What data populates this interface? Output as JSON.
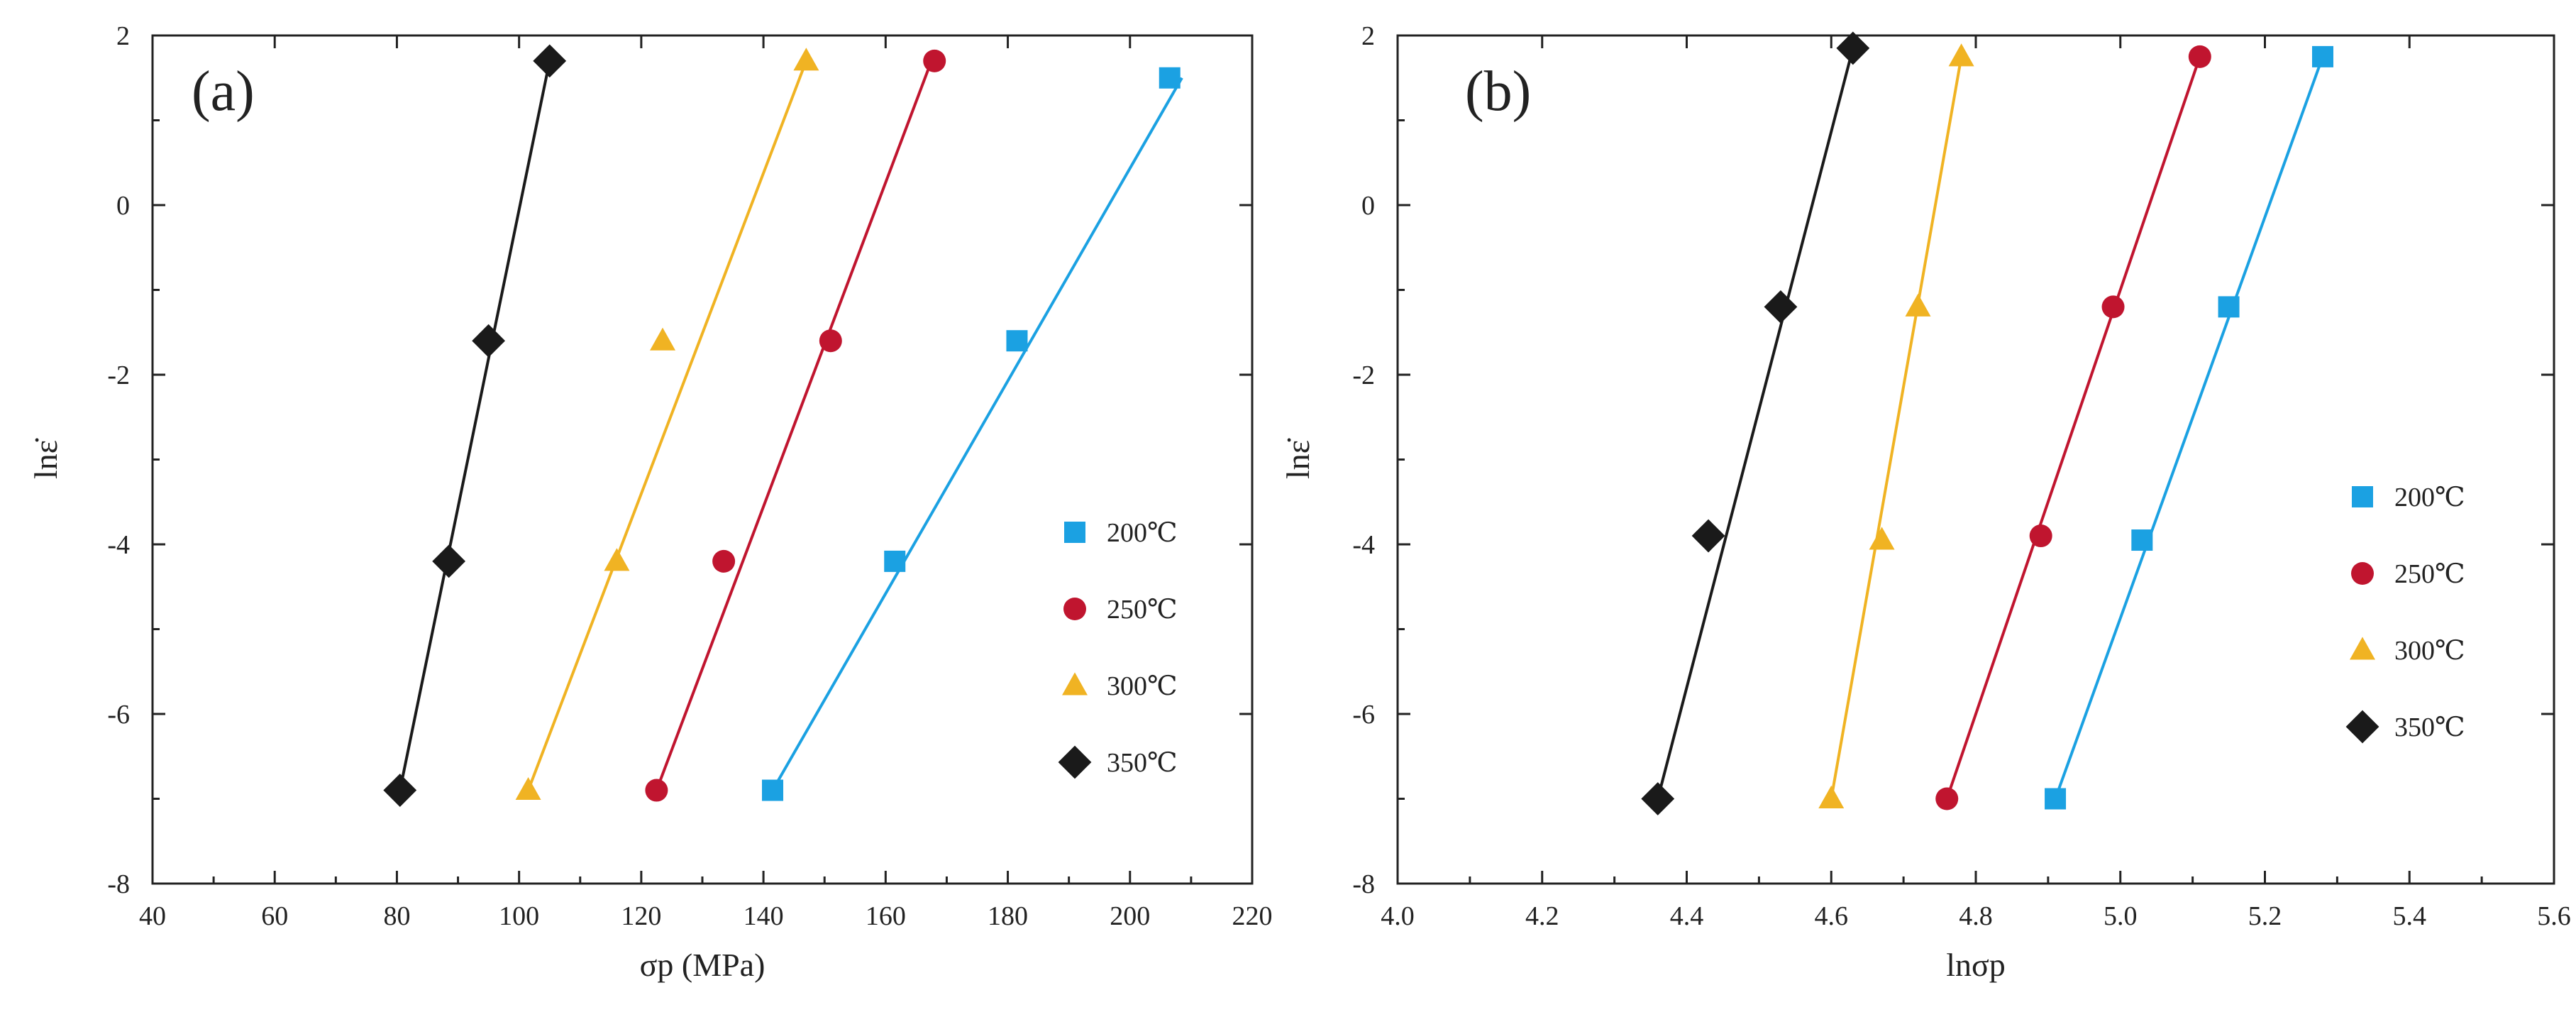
{
  "chart_data": [
    {
      "type": "scatter",
      "panel_label": "(a)",
      "xlabel": "σp (MPa)",
      "ylabel": "lnε̇",
      "xlim": [
        40,
        220
      ],
      "ylim": [
        -8,
        2
      ],
      "xticks": [
        40,
        60,
        80,
        100,
        120,
        140,
        160,
        180,
        200,
        220
      ],
      "yticks": [
        -8,
        -6,
        -4,
        -2,
        0,
        2
      ],
      "xtick_labels": [
        "40",
        "60",
        "80",
        "100",
        "120",
        "140",
        "160",
        "180",
        "200",
        "220"
      ],
      "ytick_labels": [
        "-8",
        "-6",
        "-4",
        "-2",
        "0",
        "2"
      ],
      "legend_position": "right",
      "series": [
        {
          "name": "200℃",
          "marker": "square",
          "color": "#1ba1e2",
          "x": [
            141.5,
            161.5,
            181.5,
            206.5
          ],
          "y": [
            -6.9,
            -4.2,
            -1.6,
            1.5
          ],
          "fit": {
            "x": [
              141.5,
              208.5
            ],
            "y": [
              -6.9,
              1.5
            ]
          }
        },
        {
          "name": "250℃",
          "marker": "circle",
          "color": "#c0152f",
          "x": [
            122.5,
            133.5,
            151.0,
            168.0
          ],
          "y": [
            -6.9,
            -4.2,
            -1.6,
            1.7
          ],
          "fit": {
            "x": [
              122.5,
              167.5
            ],
            "y": [
              -6.9,
              1.7
            ]
          }
        },
        {
          "name": "300℃",
          "marker": "triangle",
          "color": "#f0b323",
          "x": [
            101.5,
            116.0,
            123.5,
            147.0
          ],
          "y": [
            -6.9,
            -4.2,
            -1.6,
            1.7
          ],
          "fit": {
            "x": [
              101.5,
              147.0
            ],
            "y": [
              -6.9,
              1.7
            ]
          }
        },
        {
          "name": "350℃",
          "marker": "diamond",
          "color": "#1a1a1a",
          "x": [
            80.5,
            88.5,
            95.0,
            105.0
          ],
          "y": [
            -6.9,
            -4.2,
            -1.6,
            1.7
          ],
          "fit": {
            "x": [
              80.5,
              105.0
            ],
            "y": [
              -6.9,
              1.7
            ]
          }
        }
      ]
    },
    {
      "type": "scatter",
      "panel_label": "(b)",
      "xlabel": "lnσp",
      "ylabel": "lnε̇",
      "xlim": [
        4.0,
        5.6
      ],
      "ylim": [
        -8,
        2
      ],
      "xticks": [
        4.0,
        4.2,
        4.4,
        4.6,
        4.8,
        5.0,
        5.2,
        5.4,
        5.6
      ],
      "yticks": [
        -8,
        -6,
        -4,
        -2,
        0,
        2
      ],
      "xtick_labels": [
        "4.0",
        "4.2",
        "4.4",
        "4.6",
        "4.8",
        "5.0",
        "5.2",
        "5.4",
        "5.6"
      ],
      "ytick_labels": [
        "-8",
        "-6",
        "-4",
        "-2",
        "0",
        "2"
      ],
      "legend_position": "right",
      "series": [
        {
          "name": "200℃",
          "marker": "square",
          "color": "#1ba1e2",
          "x": [
            4.91,
            5.03,
            5.15,
            5.28
          ],
          "y": [
            -7.0,
            -3.95,
            -1.2,
            1.75
          ],
          "fit": {
            "x": [
              4.91,
              5.28
            ],
            "y": [
              -7.0,
              1.75
            ]
          }
        },
        {
          "name": "250℃",
          "marker": "circle",
          "color": "#c0152f",
          "x": [
            4.76,
            4.89,
            4.99,
            5.11
          ],
          "y": [
            -7.0,
            -3.9,
            -1.2,
            1.75
          ],
          "fit": {
            "x": [
              4.76,
              5.11
            ],
            "y": [
              -7.0,
              1.75
            ]
          }
        },
        {
          "name": "300℃",
          "marker": "triangle",
          "color": "#f0b323",
          "x": [
            4.6,
            4.67,
            4.72,
            4.78
          ],
          "y": [
            -7.0,
            -3.95,
            -1.2,
            1.75
          ],
          "fit": {
            "x": [
              4.6,
              4.78
            ],
            "y": [
              -7.0,
              1.75
            ]
          }
        },
        {
          "name": "350℃",
          "marker": "diamond",
          "color": "#1a1a1a",
          "x": [
            4.36,
            4.43,
            4.53,
            4.63
          ],
          "y": [
            -7.0,
            -3.9,
            -1.2,
            1.85
          ],
          "fit": {
            "x": [
              4.36,
              4.63
            ],
            "y": [
              -7.0,
              1.85
            ]
          }
        }
      ]
    }
  ]
}
